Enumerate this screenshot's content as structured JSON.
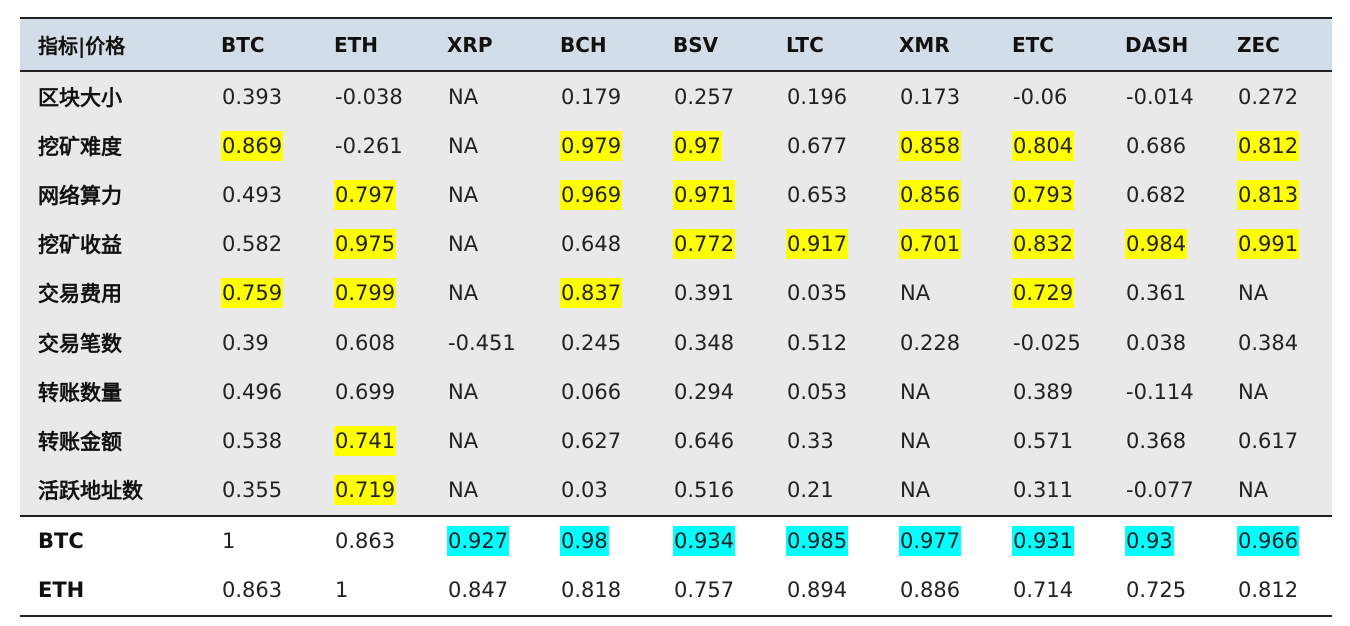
{
  "table": {
    "headers": [
      "指标|价格",
      "BTC",
      "ETH",
      "XRP",
      "BCH",
      "BSV",
      "LTC",
      "XMR",
      "ETC",
      "DASH",
      "ZEC"
    ],
    "metric_rows": [
      {
        "label": "区块大小",
        "cells": [
          {
            "v": "0.393",
            "hl": ""
          },
          {
            "v": "-0.038",
            "hl": ""
          },
          {
            "v": "NA",
            "hl": ""
          },
          {
            "v": "0.179",
            "hl": ""
          },
          {
            "v": "0.257",
            "hl": ""
          },
          {
            "v": "0.196",
            "hl": ""
          },
          {
            "v": "0.173",
            "hl": ""
          },
          {
            "v": "-0.06",
            "hl": ""
          },
          {
            "v": "-0.014",
            "hl": ""
          },
          {
            "v": "0.272",
            "hl": ""
          }
        ]
      },
      {
        "label": "挖矿难度",
        "cells": [
          {
            "v": "0.869",
            "hl": "yellow"
          },
          {
            "v": "-0.261",
            "hl": ""
          },
          {
            "v": "NA",
            "hl": ""
          },
          {
            "v": "0.979",
            "hl": "yellow"
          },
          {
            "v": "0.97",
            "hl": "yellow"
          },
          {
            "v": "0.677",
            "hl": ""
          },
          {
            "v": "0.858",
            "hl": "yellow"
          },
          {
            "v": "0.804",
            "hl": "yellow"
          },
          {
            "v": "0.686",
            "hl": ""
          },
          {
            "v": "0.812",
            "hl": "yellow"
          }
        ]
      },
      {
        "label": "网络算力",
        "cells": [
          {
            "v": "0.493",
            "hl": ""
          },
          {
            "v": "0.797",
            "hl": "yellow"
          },
          {
            "v": "NA",
            "hl": ""
          },
          {
            "v": "0.969",
            "hl": "yellow"
          },
          {
            "v": "0.971",
            "hl": "yellow"
          },
          {
            "v": "0.653",
            "hl": ""
          },
          {
            "v": "0.856",
            "hl": "yellow"
          },
          {
            "v": "0.793",
            "hl": "yellow"
          },
          {
            "v": "0.682",
            "hl": ""
          },
          {
            "v": "0.813",
            "hl": "yellow"
          }
        ]
      },
      {
        "label": "挖矿收益",
        "cells": [
          {
            "v": "0.582",
            "hl": ""
          },
          {
            "v": "0.975",
            "hl": "yellow"
          },
          {
            "v": "NA",
            "hl": ""
          },
          {
            "v": "0.648",
            "hl": ""
          },
          {
            "v": "0.772",
            "hl": "yellow"
          },
          {
            "v": "0.917",
            "hl": "yellow"
          },
          {
            "v": "0.701",
            "hl": "yellow"
          },
          {
            "v": "0.832",
            "hl": "yellow"
          },
          {
            "v": "0.984",
            "hl": "yellow"
          },
          {
            "v": "0.991",
            "hl": "yellow"
          }
        ]
      },
      {
        "label": "交易费用",
        "cells": [
          {
            "v": "0.759",
            "hl": "yellow"
          },
          {
            "v": "0.799",
            "hl": "yellow"
          },
          {
            "v": "NA",
            "hl": ""
          },
          {
            "v": "0.837",
            "hl": "yellow"
          },
          {
            "v": "0.391",
            "hl": ""
          },
          {
            "v": "0.035",
            "hl": ""
          },
          {
            "v": "NA",
            "hl": ""
          },
          {
            "v": "0.729",
            "hl": "yellow"
          },
          {
            "v": "0.361",
            "hl": ""
          },
          {
            "v": "NA",
            "hl": ""
          }
        ]
      },
      {
        "label": "交易笔数",
        "cells": [
          {
            "v": "0.39",
            "hl": ""
          },
          {
            "v": "0.608",
            "hl": ""
          },
          {
            "v": "-0.451",
            "hl": ""
          },
          {
            "v": "0.245",
            "hl": ""
          },
          {
            "v": "0.348",
            "hl": ""
          },
          {
            "v": "0.512",
            "hl": ""
          },
          {
            "v": "0.228",
            "hl": ""
          },
          {
            "v": "-0.025",
            "hl": ""
          },
          {
            "v": "0.038",
            "hl": ""
          },
          {
            "v": "0.384",
            "hl": ""
          }
        ]
      },
      {
        "label": "转账数量",
        "cells": [
          {
            "v": "0.496",
            "hl": ""
          },
          {
            "v": "0.699",
            "hl": ""
          },
          {
            "v": "NA",
            "hl": ""
          },
          {
            "v": "0.066",
            "hl": ""
          },
          {
            "v": "0.294",
            "hl": ""
          },
          {
            "v": "0.053",
            "hl": ""
          },
          {
            "v": "NA",
            "hl": ""
          },
          {
            "v": "0.389",
            "hl": ""
          },
          {
            "v": "-0.114",
            "hl": ""
          },
          {
            "v": "NA",
            "hl": ""
          }
        ]
      },
      {
        "label": "转账金额",
        "cells": [
          {
            "v": "0.538",
            "hl": ""
          },
          {
            "v": "0.741",
            "hl": "yellow"
          },
          {
            "v": "NA",
            "hl": ""
          },
          {
            "v": "0.627",
            "hl": ""
          },
          {
            "v": "0.646",
            "hl": ""
          },
          {
            "v": "0.33",
            "hl": ""
          },
          {
            "v": "NA",
            "hl": ""
          },
          {
            "v": "0.571",
            "hl": ""
          },
          {
            "v": "0.368",
            "hl": ""
          },
          {
            "v": "0.617",
            "hl": ""
          }
        ]
      },
      {
        "label": "活跃地址数",
        "cells": [
          {
            "v": "0.355",
            "hl": ""
          },
          {
            "v": "0.719",
            "hl": "yellow"
          },
          {
            "v": "NA",
            "hl": ""
          },
          {
            "v": "0.03",
            "hl": ""
          },
          {
            "v": "0.516",
            "hl": ""
          },
          {
            "v": "0.21",
            "hl": ""
          },
          {
            "v": "NA",
            "hl": ""
          },
          {
            "v": "0.311",
            "hl": ""
          },
          {
            "v": "-0.077",
            "hl": ""
          },
          {
            "v": "NA",
            "hl": ""
          }
        ]
      }
    ],
    "price_rows": [
      {
        "label": "BTC",
        "cells": [
          {
            "v": "1",
            "hl": ""
          },
          {
            "v": "0.863",
            "hl": ""
          },
          {
            "v": "0.927",
            "hl": "cyan"
          },
          {
            "v": "0.98",
            "hl": "cyan"
          },
          {
            "v": "0.934",
            "hl": "cyan"
          },
          {
            "v": "0.985",
            "hl": "cyan"
          },
          {
            "v": "0.977",
            "hl": "cyan"
          },
          {
            "v": "0.931",
            "hl": "cyan"
          },
          {
            "v": "0.93",
            "hl": "cyan"
          },
          {
            "v": "0.966",
            "hl": "cyan"
          }
        ]
      },
      {
        "label": "ETH",
        "cells": [
          {
            "v": "0.863",
            "hl": ""
          },
          {
            "v": "1",
            "hl": ""
          },
          {
            "v": "0.847",
            "hl": ""
          },
          {
            "v": "0.818",
            "hl": ""
          },
          {
            "v": "0.757",
            "hl": ""
          },
          {
            "v": "0.894",
            "hl": ""
          },
          {
            "v": "0.886",
            "hl": ""
          },
          {
            "v": "0.714",
            "hl": ""
          },
          {
            "v": "0.725",
            "hl": ""
          },
          {
            "v": "0.812",
            "hl": ""
          }
        ]
      }
    ]
  },
  "colors": {
    "header_bg": "#d3dde7",
    "metric_bg": "#e9e9e9",
    "highlight_yellow": "#ffff00",
    "highlight_cyan": "#00ffff"
  }
}
